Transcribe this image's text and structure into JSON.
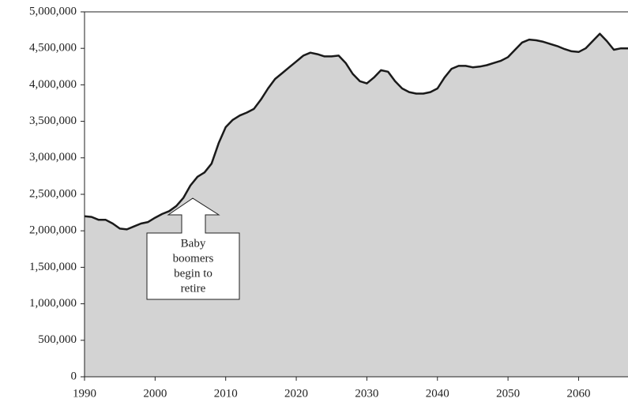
{
  "chart_data": {
    "type": "area",
    "x": [
      1990,
      1991,
      1992,
      1993,
      1994,
      1995,
      1996,
      1997,
      1998,
      1999,
      2000,
      2001,
      2002,
      2003,
      2004,
      2005,
      2006,
      2007,
      2008,
      2009,
      2010,
      2011,
      2012,
      2013,
      2014,
      2015,
      2016,
      2017,
      2018,
      2019,
      2020,
      2021,
      2022,
      2023,
      2024,
      2025,
      2026,
      2027,
      2028,
      2029,
      2030,
      2031,
      2032,
      2033,
      2034,
      2035,
      2036,
      2037,
      2038,
      2039,
      2040,
      2041,
      2042,
      2043,
      2044,
      2045,
      2046,
      2047,
      2048,
      2049,
      2050,
      2051,
      2052,
      2053,
      2054,
      2055,
      2056,
      2057,
      2058,
      2059,
      2060,
      2061,
      2062,
      2063,
      2064,
      2065,
      2066,
      2067
    ],
    "values": [
      2200000,
      2190000,
      2150000,
      2150000,
      2100000,
      2030000,
      2020000,
      2060000,
      2100000,
      2120000,
      2180000,
      2230000,
      2270000,
      2340000,
      2450000,
      2620000,
      2740000,
      2800000,
      2920000,
      3200000,
      3420000,
      3520000,
      3580000,
      3620000,
      3670000,
      3800000,
      3950000,
      4080000,
      4160000,
      4240000,
      4320000,
      4400000,
      4440000,
      4420000,
      4390000,
      4390000,
      4400000,
      4300000,
      4150000,
      4050000,
      4020000,
      4100000,
      4200000,
      4180000,
      4050000,
      3950000,
      3900000,
      3880000,
      3880000,
      3900000,
      3950000,
      4100000,
      4220000,
      4260000,
      4260000,
      4240000,
      4250000,
      4270000,
      4300000,
      4330000,
      4380000,
      4480000,
      4580000,
      4620000,
      4610000,
      4590000,
      4560000,
      4530000,
      4490000,
      4460000,
      4450000,
      4500000,
      4600000,
      4700000,
      4600000,
      4480000,
      4500000,
      4500000
    ],
    "color": "#d3d3d3",
    "line_color": "#1a1a1a",
    "xlim": [
      1990,
      2067
    ],
    "xticks": [
      1990,
      2000,
      2010,
      2020,
      2030,
      2040,
      2050,
      2060
    ],
    "ylim": [
      0,
      5000000
    ],
    "yticks": [
      0,
      {
        "value": 500000,
        "label": "500,000"
      },
      {
        "value": 1000000,
        "label": "1,000,000"
      },
      {
        "value": 1500000,
        "label": "1,500,000"
      },
      {
        "value": 2000000,
        "label": "2,000,000"
      },
      {
        "value": 2500000,
        "label": "2,500,000"
      },
      {
        "value": 3000000,
        "label": "3,000,000"
      },
      {
        "value": 3500000,
        "label": "3,500,000"
      },
      {
        "value": 4000000,
        "label": "4,000,000"
      },
      {
        "value": 4500000,
        "label": "4,500,000"
      },
      {
        "value": 5000000,
        "label": "5,000,000"
      }
    ],
    "annotation": {
      "lines": [
        "Baby",
        "boomers",
        "begin to",
        "retire"
      ]
    }
  }
}
